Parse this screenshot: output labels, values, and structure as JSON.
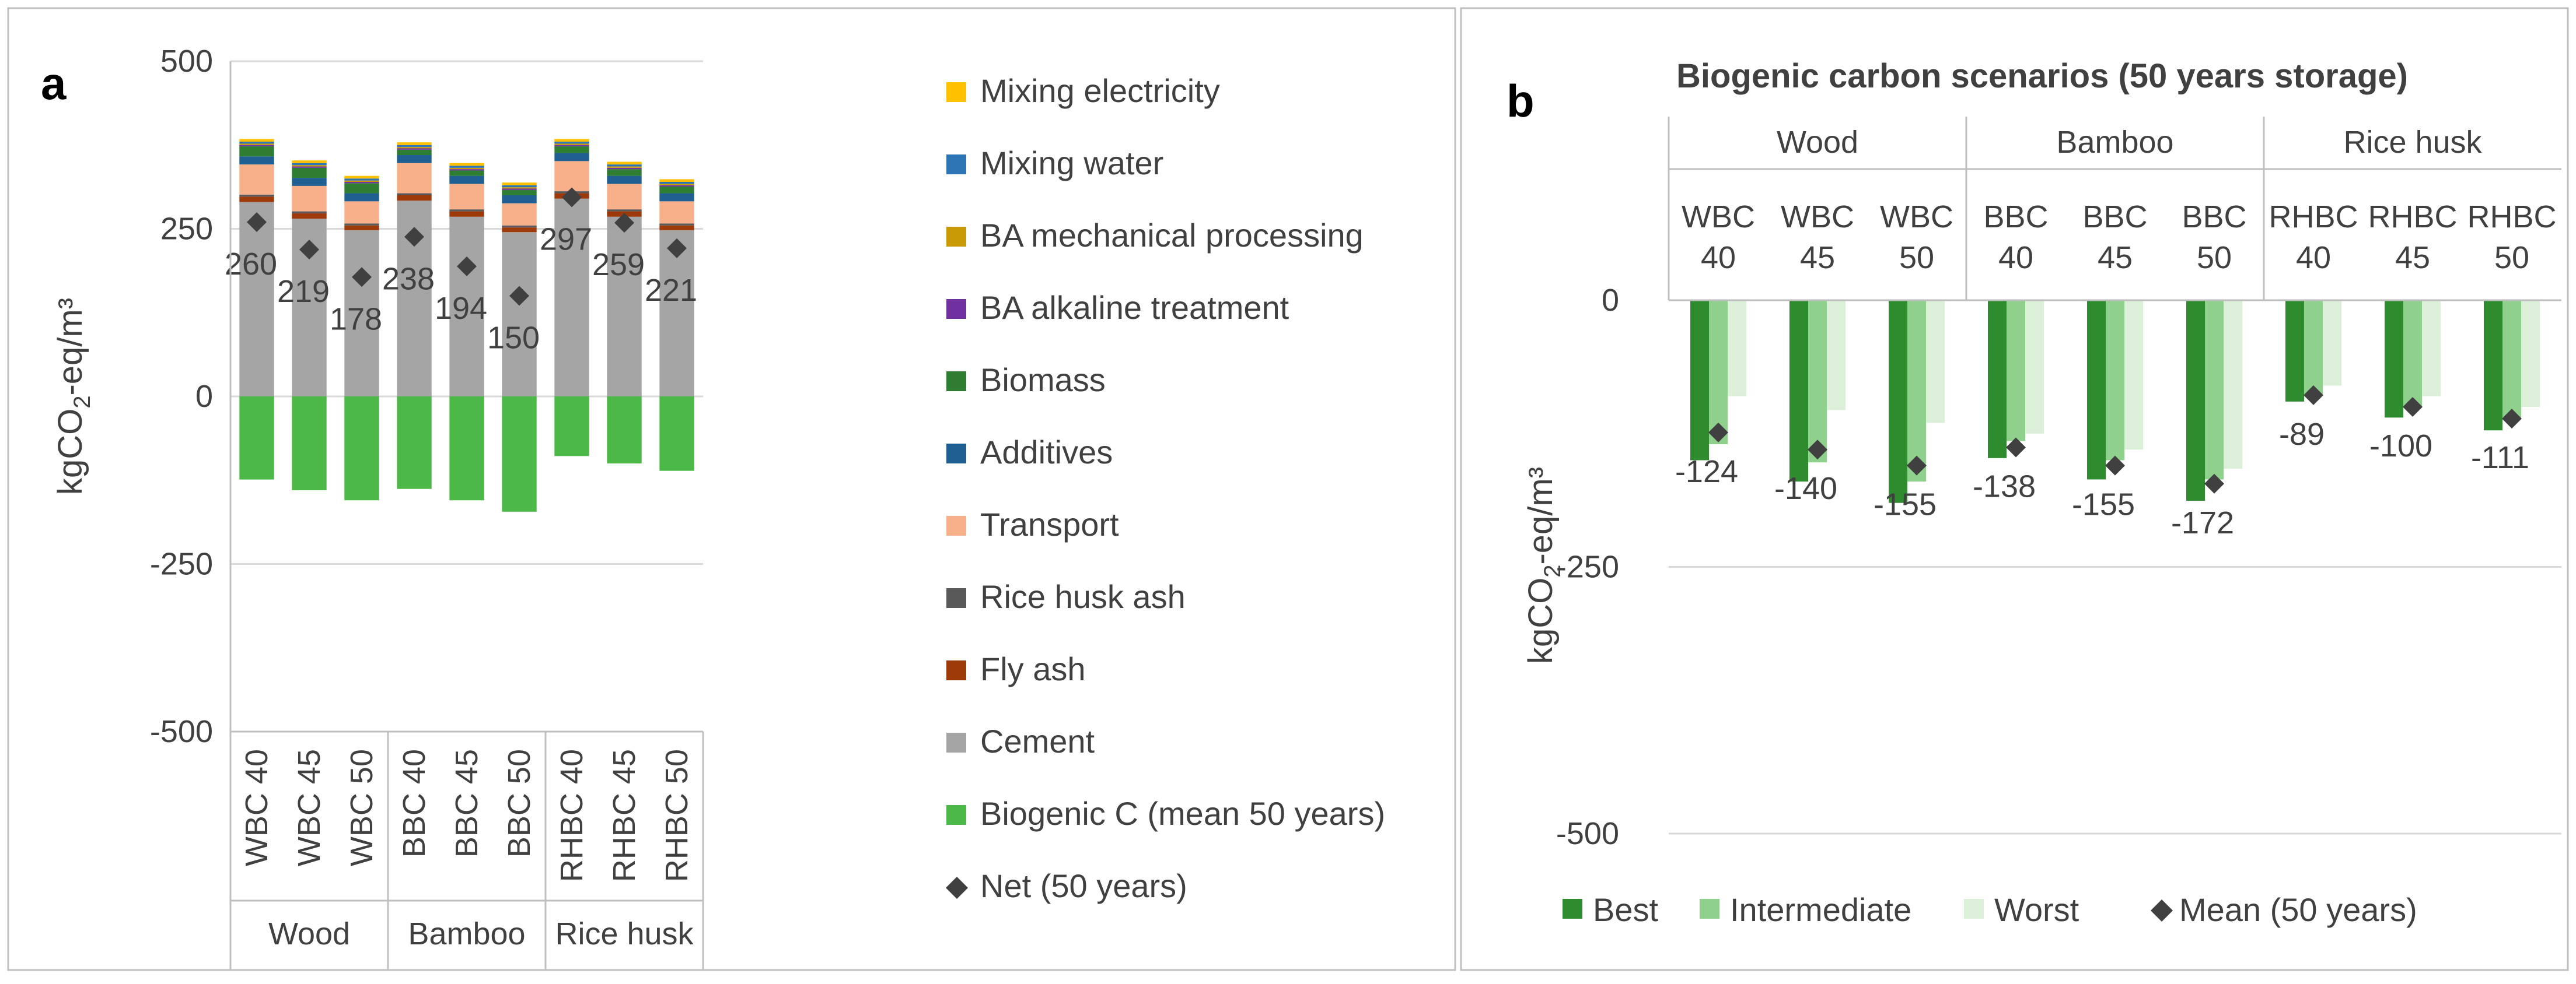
{
  "chart_data": [
    {
      "panel": "a",
      "type": "bar",
      "subtype": "stacked",
      "ylabel": "kgCO2-eq/m³",
      "ylim": [
        -500,
        500
      ],
      "yticks": [
        500,
        250,
        0,
        -250,
        -500
      ],
      "groups": [
        "Wood",
        "Bamboo",
        "Rice husk"
      ],
      "categories": [
        "WBC 40",
        "WBC 45",
        "WBC 50",
        "BBC 40",
        "BBC 45",
        "BBC 50",
        "RHBC 40",
        "RHBC 45",
        "RHBC 50"
      ],
      "series": [
        {
          "name": "Cement",
          "color": "#a5a5a5",
          "values": [
            290,
            265,
            248,
            292,
            268,
            245,
            295,
            268,
            248
          ]
        },
        {
          "name": "Fly ash",
          "color": "#9e3a0a",
          "values": [
            8,
            8,
            7,
            8,
            8,
            7,
            8,
            8,
            7
          ]
        },
        {
          "name": "Rice husk ash",
          "color": "#595959",
          "values": [
            3,
            3,
            3,
            3,
            3,
            3,
            3,
            3,
            3
          ]
        },
        {
          "name": "Transport",
          "color": "#f8b08a",
          "values": [
            45,
            38,
            33,
            45,
            38,
            33,
            45,
            38,
            33
          ]
        },
        {
          "name": "Additives",
          "color": "#1f5f92",
          "values": [
            12,
            12,
            12,
            12,
            12,
            12,
            12,
            12,
            12
          ]
        },
        {
          "name": "Biomass",
          "color": "#2f7d32",
          "values": [
            15,
            15,
            15,
            8,
            8,
            8,
            10,
            10,
            10
          ]
        },
        {
          "name": "BA alkaline treatment",
          "color": "#7030a0",
          "values": [
            2,
            2,
            2,
            2,
            2,
            2,
            2,
            2,
            2
          ]
        },
        {
          "name": "BA mechanical processing",
          "color": "#c99a06",
          "values": [
            2,
            2,
            2,
            2,
            2,
            2,
            2,
            2,
            2
          ]
        },
        {
          "name": "Mixing water",
          "color": "#2e75b6",
          "values": [
            3,
            3,
            3,
            3,
            3,
            3,
            3,
            3,
            3
          ]
        },
        {
          "name": "Mixing electricity",
          "color": "#ffc000",
          "values": [
            4,
            4,
            4,
            4,
            4,
            4,
            4,
            4,
            4
          ]
        },
        {
          "name": "Biogenic C (mean 50 years)",
          "color": "#4cb848",
          "values": [
            -124,
            -140,
            -155,
            -138,
            -155,
            -172,
            -89,
            -100,
            -111
          ]
        }
      ],
      "net": {
        "name": "Net (50 years)",
        "color": "#404040",
        "values": [
          260,
          219,
          178,
          238,
          194,
          150,
          297,
          259,
          221
        ]
      },
      "net_labels": [
        "260",
        "219",
        "178",
        "238",
        "194",
        "150",
        "297",
        "259",
        "221"
      ],
      "ytick_labels": [
        "500",
        "250",
        "0",
        "-250",
        "-500"
      ],
      "legend": [
        "Mixing electricity",
        "Mixing water",
        "BA mechanical processing",
        "BA alkaline treatment",
        "Biomass",
        "Additives",
        "Transport",
        "Rice husk ash",
        "Fly ash",
        "Cement",
        "Biogenic C (mean 50 years)",
        "Net (50 years)"
      ]
    },
    {
      "panel": "b",
      "type": "bar",
      "subtype": "clustered",
      "title": "Biogenic carbon scenarios (50 years storage)",
      "ylabel": "kgCO2-eq/m³",
      "ylim": [
        -500,
        0
      ],
      "yticks": [
        0,
        -250,
        -500
      ],
      "ytick_labels": [
        "0",
        "-250",
        "-500"
      ],
      "groups": [
        "Wood",
        "Bamboo",
        "Rice husk"
      ],
      "categories": [
        [
          "WBC",
          "40"
        ],
        [
          "WBC",
          "45"
        ],
        [
          "WBC",
          "50"
        ],
        [
          "BBC",
          "40"
        ],
        [
          "BBC",
          "45"
        ],
        [
          "BBC",
          "50"
        ],
        [
          "RHBC",
          "40"
        ],
        [
          "RHBC",
          "45"
        ],
        [
          "RHBC",
          "50"
        ]
      ],
      "series": [
        {
          "name": "Best",
          "color": "#2e8b2e",
          "values": [
            -150,
            -170,
            -190,
            -148,
            -168,
            -188,
            -95,
            -110,
            -122
          ]
        },
        {
          "name": "Intermediate",
          "color": "#8fd18c",
          "values": [
            -135,
            -152,
            -170,
            -132,
            -150,
            -168,
            -88,
            -100,
            -110
          ]
        },
        {
          "name": "Worst",
          "color": "#dcefd9",
          "values": [
            -90,
            -103,
            -115,
            -125,
            -140,
            -158,
            -80,
            -90,
            -100
          ]
        }
      ],
      "mean": {
        "name": "Mean (50 years)",
        "color": "#404040",
        "values": [
          -124,
          -140,
          -155,
          -138,
          -155,
          -172,
          -89,
          -100,
          -111
        ]
      },
      "mean_labels": [
        "-124",
        "-140",
        "-155",
        "-138",
        "-155",
        "-172",
        "-89",
        "-100",
        "-111"
      ],
      "legend": [
        "Best",
        "Intermediate",
        "Worst",
        "Mean (50 years)"
      ]
    }
  ]
}
